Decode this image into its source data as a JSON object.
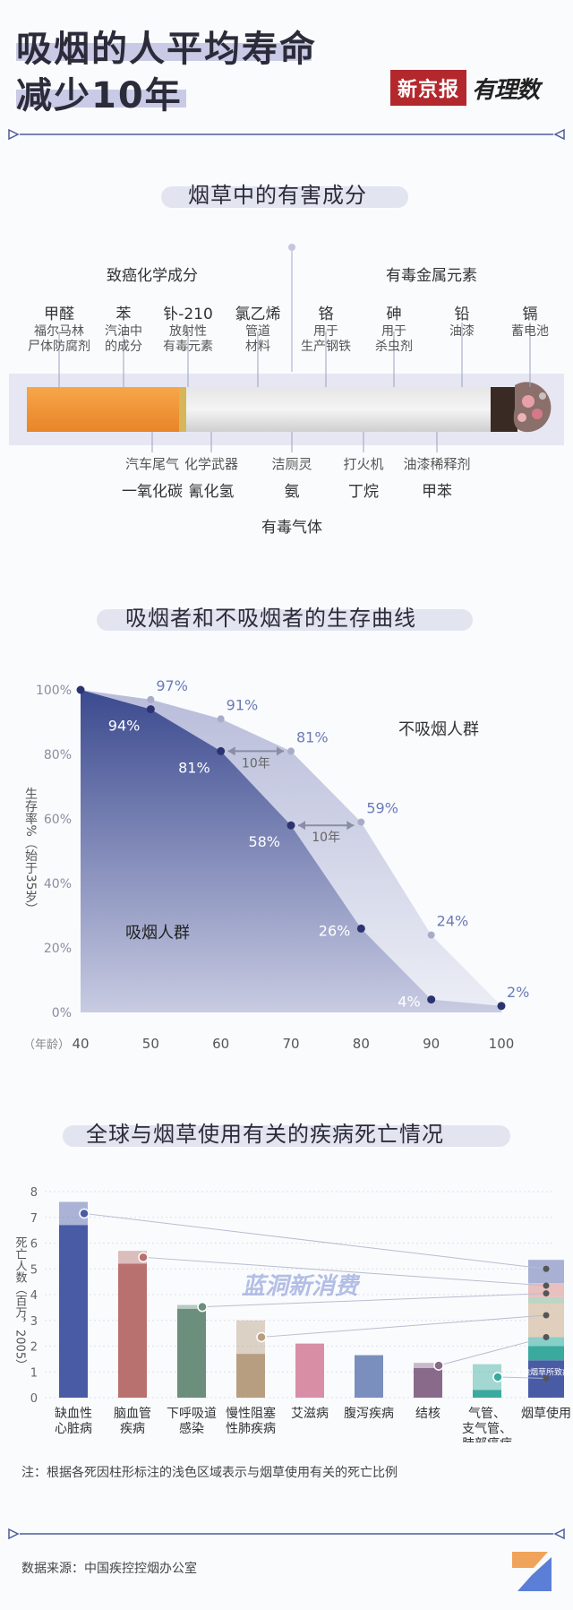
{
  "header": {
    "title_line1": "吸烟的人平均寿命",
    "title_line2": "减少10年",
    "logo_text": "新京报",
    "logo_script": "有理数"
  },
  "section1": {
    "title": "烟草中的有害成分",
    "carcinogens_label": "致癌化学成分",
    "metals_label": "有毒金属元素",
    "gases_label": "有毒气体",
    "top_items": [
      {
        "name": "甲醛",
        "desc": "福尔马林\n尸体防腐剂"
      },
      {
        "name": "苯",
        "desc": "汽油中\n的成分"
      },
      {
        "name": "钋-210",
        "desc": "放射性\n有毒元素"
      },
      {
        "name": "氯乙烯",
        "desc": "管道\n材料"
      },
      {
        "name": "铬",
        "desc": "用于\n生产钢铁"
      },
      {
        "name": "砷",
        "desc": "用于\n杀虫剂"
      },
      {
        "name": "铅",
        "desc": "油漆"
      },
      {
        "name": "镉",
        "desc": "蓄电池"
      }
    ],
    "bottom_items": [
      {
        "desc": "汽车尾气",
        "name": "一氧化碳"
      },
      {
        "desc": "化学武器",
        "name": "氰化氢"
      },
      {
        "desc": "洁厕灵",
        "name": "氨"
      },
      {
        "desc": "打火机",
        "name": "丁烷"
      },
      {
        "desc": "油漆稀释剂",
        "name": "甲苯"
      }
    ]
  },
  "section2": {
    "title": "吸烟者和不吸烟者的生存曲线"
  },
  "section3": {
    "title": "全球与烟草使用有关的疾病死亡情况",
    "note": "注：根据各死因柱形标注的浅色区域表示与烟草使用有关的死亡比例",
    "watermark": "蓝洞新消费"
  },
  "footer": {
    "source": "数据来源：中国疾控控烟办公室"
  },
  "chart_data": [
    {
      "type": "area",
      "title": "吸烟者和不吸烟者的生存曲线",
      "xlabel": "（年龄）",
      "ylabel": "生存率%（始于35岁）",
      "x": [
        40,
        50,
        60,
        70,
        80,
        90,
        100
      ],
      "xlim": [
        40,
        100
      ],
      "ylim": [
        0,
        100
      ],
      "yticks": [
        "0%",
        "20%",
        "40%",
        "60%",
        "80%",
        "100%"
      ],
      "grid": false,
      "series": [
        {
          "name": "不吸烟人群",
          "color": "#c5c9e0",
          "points": [
            [
              40,
              100
            ],
            [
              50,
              97
            ],
            [
              60,
              91
            ],
            [
              70,
              81
            ],
            [
              80,
              59
            ],
            [
              90,
              24
            ],
            [
              100,
              2
            ]
          ],
          "labels": [
            "",
            "97%",
            "91%",
            "81%",
            "59%",
            "24%",
            "2%"
          ]
        },
        {
          "name": "吸烟人群",
          "color": "#3b4a8f",
          "points": [
            [
              40,
              100
            ],
            [
              50,
              94
            ],
            [
              60,
              81
            ],
            [
              70,
              58
            ],
            [
              80,
              26
            ],
            [
              90,
              4
            ],
            [
              100,
              2
            ]
          ],
          "labels": [
            "",
            "94%",
            "81%",
            "58%",
            "26%",
            "4%",
            ""
          ]
        }
      ],
      "annotations": [
        {
          "text": "10年",
          "from": [
            60,
            81
          ],
          "to": [
            70,
            81
          ]
        },
        {
          "text": "10年",
          "from": [
            70,
            58
          ],
          "to": [
            80,
            59
          ]
        }
      ]
    },
    {
      "type": "bar",
      "title": "全球与烟草使用有关的疾病死亡情况",
      "ylabel": "死亡人数（百万，2005）",
      "ylim": [
        0,
        8
      ],
      "yticks": [
        "0",
        "1",
        "2",
        "3",
        "4",
        "5",
        "6",
        "7",
        "8"
      ],
      "categories": [
        "缺血性\n心脏病",
        "脑血管\n疾病",
        "下呼吸道\n感染",
        "慢性阻塞\n性肺疾病",
        "艾滋病",
        "腹泻疾病",
        "结核",
        "气管、\n支气管、\n肺部癌症",
        "烟草使用"
      ],
      "series": [
        {
          "name": "total",
          "values": [
            7.6,
            5.7,
            3.6,
            3.0,
            2.1,
            1.65,
            1.35,
            1.3,
            5.5
          ]
        },
        {
          "name": "tobacco_related",
          "values": [
            0.9,
            0.5,
            0.15,
            1.3,
            0,
            0,
            0.2,
            1.0,
            5.5
          ]
        }
      ],
      "colors": [
        "#4a5ba6",
        "#b8716e",
        "#6b8f7c",
        "#b89e80",
        "#d88fa6",
        "#7a8fbd",
        "#8a6a8a",
        "#3aaa9e",
        "#b8b8d8"
      ],
      "stack_segments": {
        "category": "烟草使用",
        "segments": [
          {
            "value": 1.45,
            "color": "#4a5ba6",
            "label": "其他烟草所致疾病"
          },
          {
            "value": 0.55,
            "color": "#3aaa9e"
          },
          {
            "value": 0.35,
            "color": "#86d0c8"
          },
          {
            "value": 1.3,
            "color": "#e0cfbd"
          },
          {
            "value": 0.25,
            "color": "#bcd5c4"
          },
          {
            "value": 0.55,
            "color": "#e8c0c0"
          },
          {
            "value": 0.9,
            "color": "#a8b0d4"
          }
        ]
      }
    }
  ]
}
